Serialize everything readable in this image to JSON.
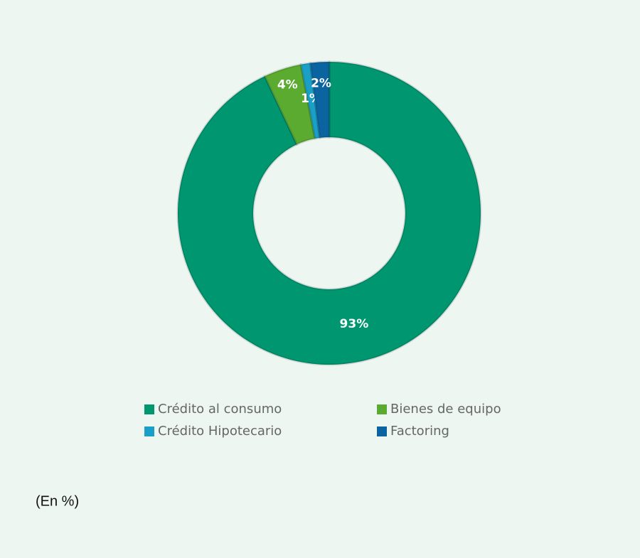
{
  "chart_data": {
    "type": "donut",
    "categories": [
      "Crédito al consumo",
      "Bienes de equipo",
      "Crédito Hipotecario",
      "Factoring"
    ],
    "values": [
      93,
      4,
      1,
      2
    ],
    "value_labels": [
      "93%",
      "4%",
      "1%",
      "2%"
    ],
    "colors": [
      "#009670",
      "#5aab2f",
      "#1a9fc6",
      "#0b64a0"
    ],
    "note": "(En %)"
  }
}
